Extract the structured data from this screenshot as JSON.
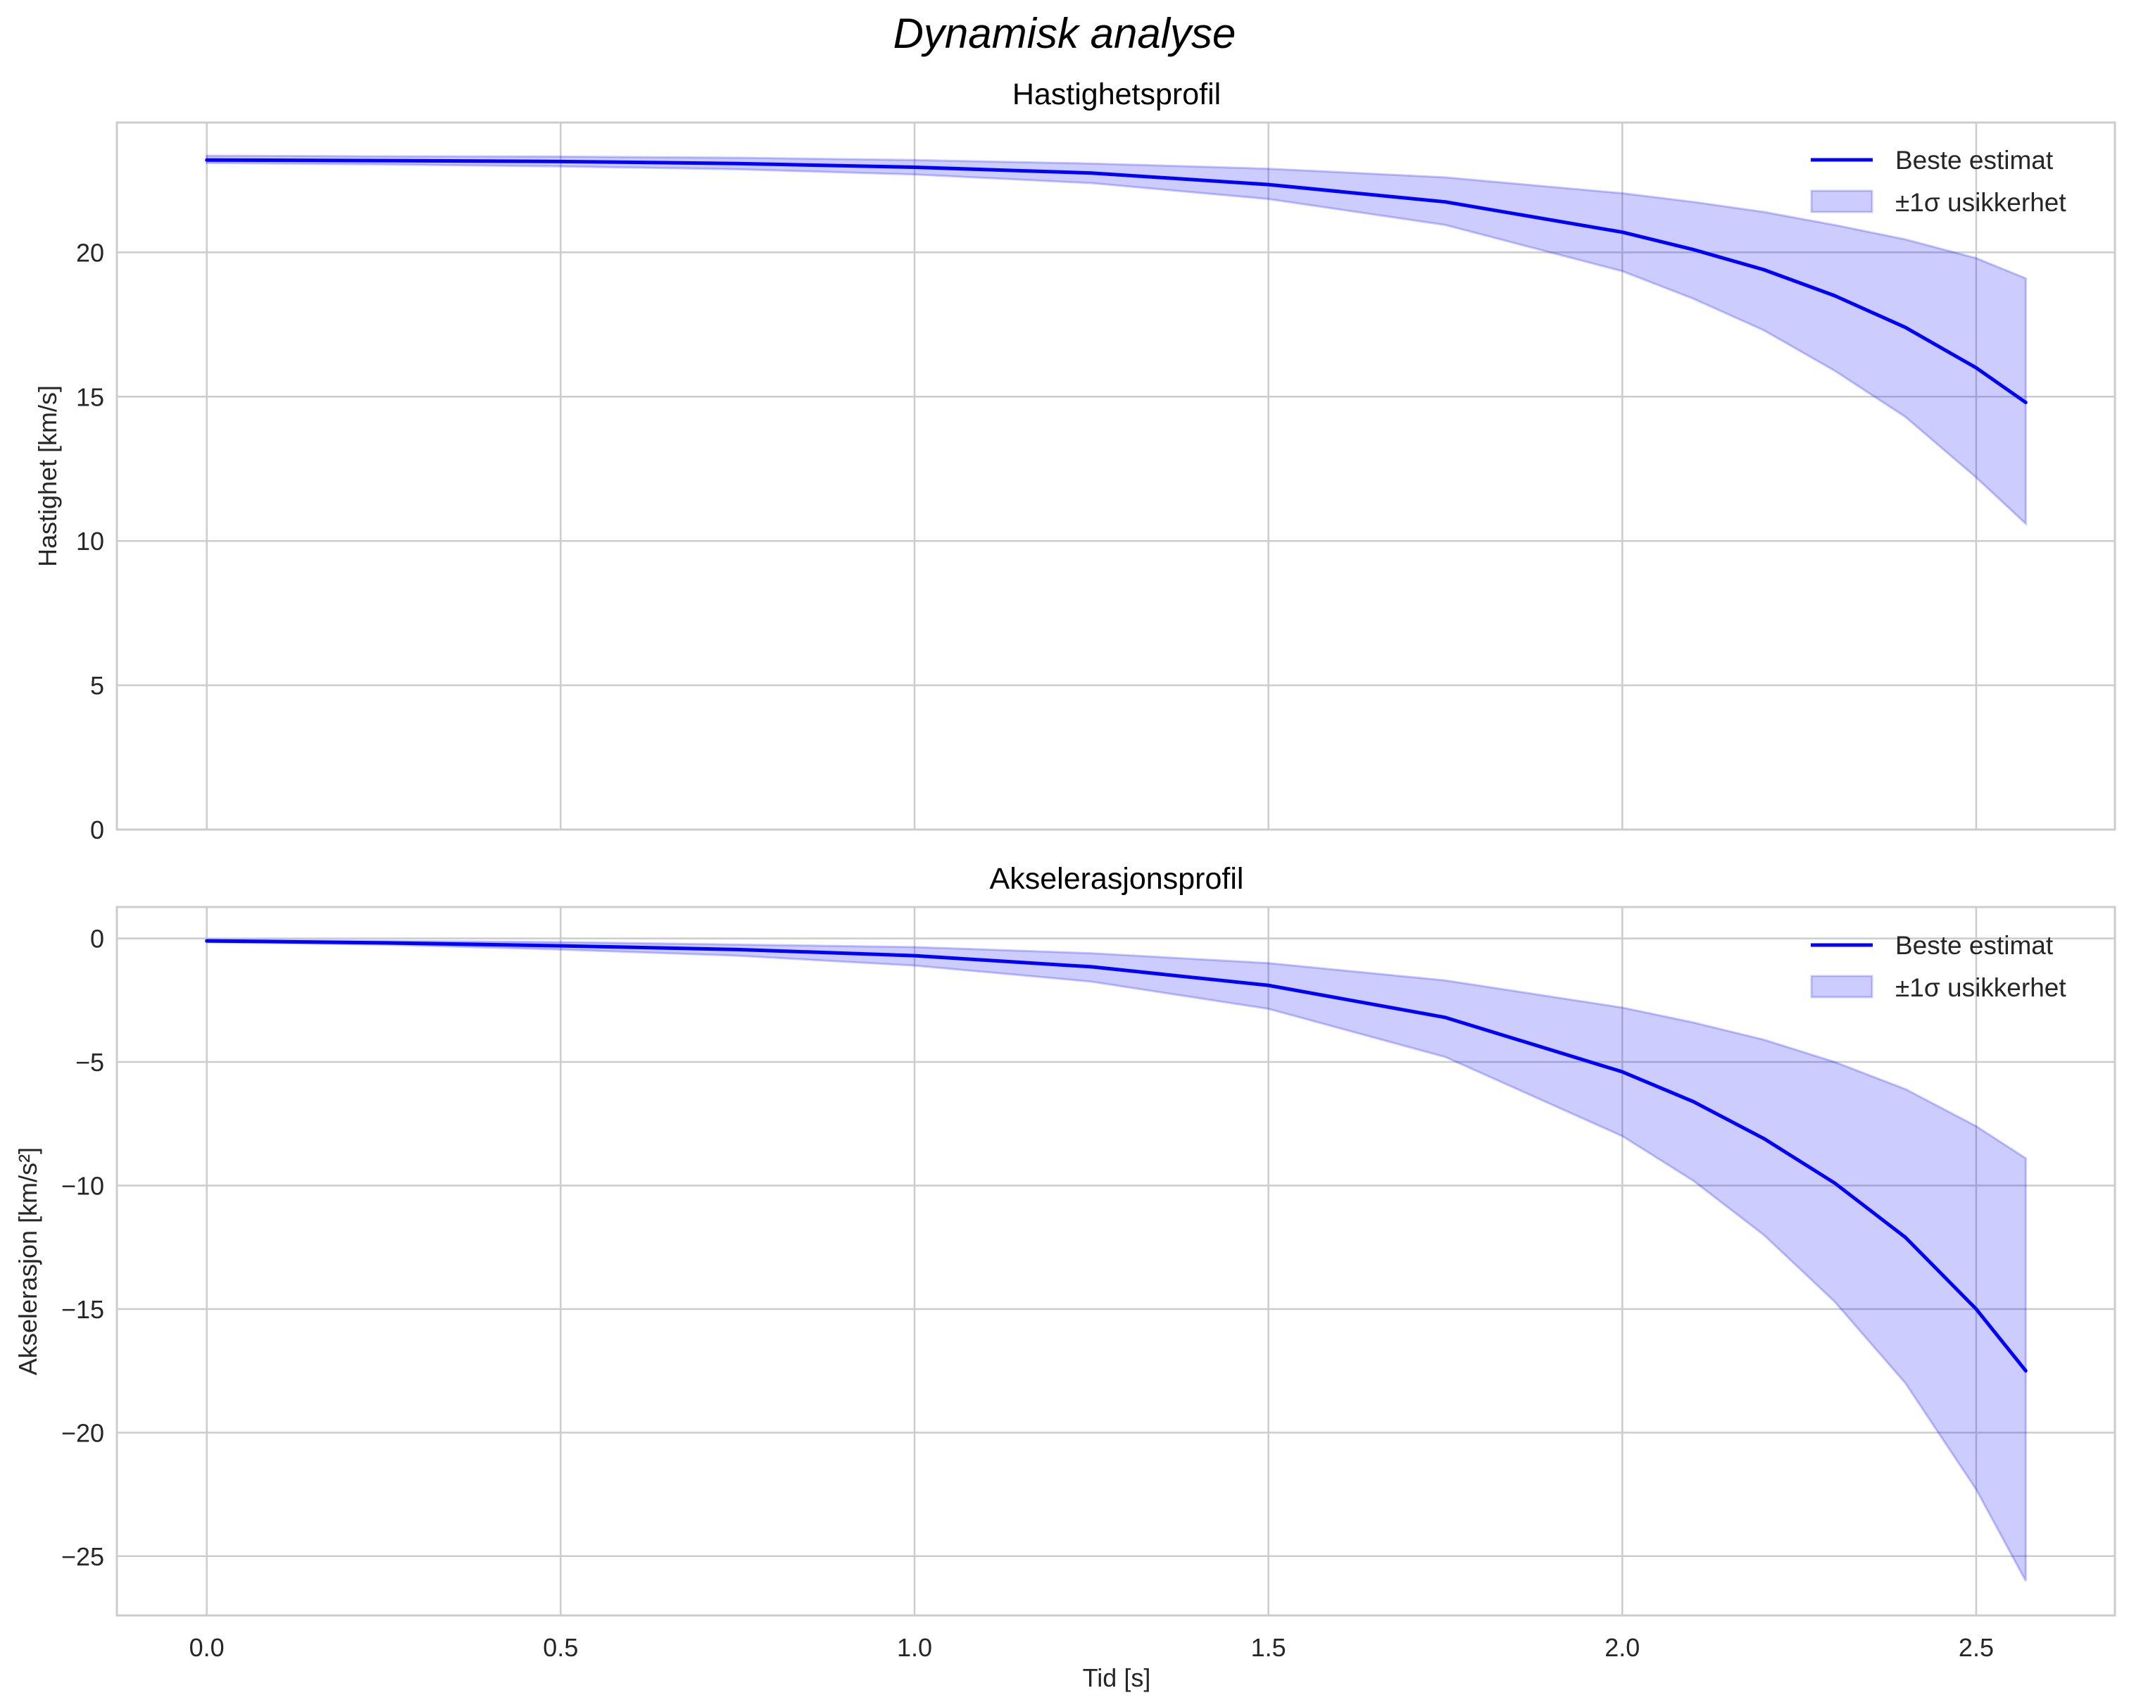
{
  "figure": {
    "suptitle": "Dynamisk analyse"
  },
  "chart_data": [
    {
      "type": "line",
      "title": "Hastighetsprofil",
      "xlabel": "",
      "ylabel": "Hastighet [km/s]",
      "xlim": [
        -0.127,
        2.696
      ],
      "ylim": [
        0,
        24.5
      ],
      "xticks": [
        "0.0",
        "0.5",
        "1.0",
        "1.5",
        "2.0",
        "2.5"
      ],
      "yticks": [
        "0",
        "5",
        "10",
        "15",
        "20"
      ],
      "ytick_values": [
        0,
        5,
        10,
        15,
        20
      ],
      "grid": true,
      "legend": {
        "position": "upper right",
        "entries": [
          "Beste estimat",
          "±1σ usikkerhet"
        ]
      },
      "x": [
        0.0,
        0.25,
        0.5,
        0.75,
        1.0,
        1.25,
        1.5,
        1.75,
        2.0,
        2.1,
        2.2,
        2.3,
        2.4,
        2.5,
        2.57
      ],
      "series": [
        {
          "name": "Beste estimat",
          "color": "#0000ff",
          "values": [
            23.2,
            23.18,
            23.15,
            23.08,
            22.95,
            22.75,
            22.35,
            21.75,
            20.7,
            20.1,
            19.4,
            18.5,
            17.4,
            16.0,
            14.8
          ]
        },
        {
          "name": "±1σ øvre",
          "color": "#0000ff",
          "alpha": 0.2,
          "values": [
            23.35,
            23.33,
            23.32,
            23.28,
            23.2,
            23.08,
            22.9,
            22.6,
            22.05,
            21.75,
            21.4,
            20.95,
            20.45,
            19.8,
            19.1
          ]
        },
        {
          "name": "±1σ nedre",
          "color": "#0000ff",
          "alpha": 0.2,
          "values": [
            23.1,
            23.05,
            22.98,
            22.88,
            22.7,
            22.4,
            21.85,
            20.95,
            19.35,
            18.4,
            17.3,
            15.9,
            14.3,
            12.2,
            10.6
          ]
        }
      ]
    },
    {
      "type": "line",
      "title": "Akselerasjonsprofil",
      "xlabel": "Tid [s]",
      "ylabel": "Akselerasjon [km/s²]",
      "xlim": [
        -0.127,
        2.696
      ],
      "ylim": [
        -27.4,
        1.27
      ],
      "xticks": [
        "0.0",
        "0.5",
        "1.0",
        "1.5",
        "2.0",
        "2.5"
      ],
      "yticks": [
        "0",
        "−5",
        "−10",
        "−15",
        "−20",
        "−25"
      ],
      "ytick_values": [
        0,
        -5,
        -10,
        -15,
        -20,
        -25
      ],
      "grid": true,
      "legend": {
        "position": "upper right",
        "entries": [
          "Beste estimat",
          "±1σ usikkerhet"
        ]
      },
      "x": [
        0.0,
        0.25,
        0.5,
        0.75,
        1.0,
        1.25,
        1.5,
        1.75,
        2.0,
        2.1,
        2.2,
        2.3,
        2.4,
        2.5,
        2.57
      ],
      "series": [
        {
          "name": "Beste estimat",
          "color": "#0000ff",
          "values": [
            -0.1,
            -0.18,
            -0.3,
            -0.45,
            -0.7,
            -1.15,
            -1.9,
            -3.2,
            -5.4,
            -6.6,
            -8.1,
            -9.9,
            -12.1,
            -15.0,
            -17.5
          ]
        },
        {
          "name": "±1σ øvre",
          "color": "#0000ff",
          "alpha": 0.2,
          "values": [
            -0.05,
            -0.1,
            -0.15,
            -0.25,
            -0.35,
            -0.6,
            -1.0,
            -1.7,
            -2.8,
            -3.4,
            -4.1,
            -5.0,
            -6.1,
            -7.6,
            -8.9
          ]
        },
        {
          "name": "±1σ nedre",
          "color": "#0000ff",
          "alpha": 0.2,
          "values": [
            -0.15,
            -0.25,
            -0.45,
            -0.7,
            -1.1,
            -1.75,
            -2.85,
            -4.8,
            -8.0,
            -9.8,
            -12.0,
            -14.7,
            -18.0,
            -22.3,
            -26.0
          ]
        }
      ]
    }
  ]
}
